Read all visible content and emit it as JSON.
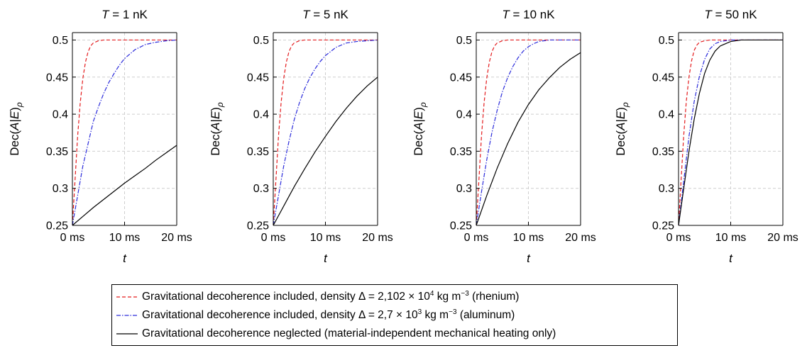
{
  "chart_data": [
    {
      "type": "line",
      "title": "T = 1 nK",
      "title_var": "T",
      "title_rest": " = 1 nK",
      "xlabel": "t",
      "ylabel": "Dec(A|E)ρ",
      "x_ticks": [
        "0 ms",
        "10 ms",
        "20 ms"
      ],
      "y_ticks": [
        "0.25",
        "0.3",
        "0.35",
        "0.4",
        "0.45",
        "0.5"
      ],
      "xlim": [
        0,
        20
      ],
      "ylim": [
        0.25,
        0.51
      ],
      "grid": true,
      "x_unit": "ms",
      "series": [
        {
          "color": "#e41a1c",
          "dash": "dashed",
          "x": [
            0,
            0.5,
            1,
            1.5,
            2,
            2.5,
            3,
            3.5,
            4,
            5,
            6,
            8,
            20
          ],
          "y": [
            0.25,
            0.31,
            0.37,
            0.415,
            0.448,
            0.47,
            0.484,
            0.492,
            0.496,
            0.499,
            0.5,
            0.5,
            0.5
          ]
        },
        {
          "color": "#2b2bdb",
          "dash": "dashdot",
          "x": [
            0,
            1,
            2,
            3,
            4,
            5,
            6,
            7,
            8,
            9,
            10,
            12,
            14,
            16,
            18,
            20
          ],
          "y": [
            0.25,
            0.29,
            0.33,
            0.36,
            0.39,
            0.41,
            0.428,
            0.443,
            0.455,
            0.466,
            0.475,
            0.487,
            0.494,
            0.497,
            0.499,
            0.5
          ]
        },
        {
          "color": "#000000",
          "dash": "solid",
          "x": [
            0,
            2,
            4,
            6,
            8,
            10,
            12,
            14,
            16,
            18,
            20
          ],
          "y": [
            0.25,
            0.262,
            0.274,
            0.285,
            0.296,
            0.307,
            0.317,
            0.327,
            0.338,
            0.348,
            0.358
          ]
        }
      ]
    },
    {
      "type": "line",
      "title": "T = 5 nK",
      "title_var": "T",
      "title_rest": " = 5 nK",
      "xlabel": "t",
      "ylabel": "Dec(A|E)ρ",
      "x_ticks": [
        "0 ms",
        "10 ms",
        "20 ms"
      ],
      "y_ticks": [
        "0.25",
        "0.3",
        "0.35",
        "0.4",
        "0.45",
        "0.5"
      ],
      "xlim": [
        0,
        20
      ],
      "ylim": [
        0.25,
        0.51
      ],
      "grid": true,
      "x_unit": "ms",
      "series": [
        {
          "color": "#e41a1c",
          "dash": "dashed",
          "x": [
            0,
            0.5,
            1,
            1.5,
            2,
            2.5,
            3,
            3.5,
            4,
            5,
            6,
            8,
            20
          ],
          "y": [
            0.25,
            0.31,
            0.37,
            0.415,
            0.448,
            0.47,
            0.484,
            0.492,
            0.496,
            0.499,
            0.5,
            0.5,
            0.5
          ]
        },
        {
          "color": "#2b2bdb",
          "dash": "dashdot",
          "x": [
            0,
            1,
            2,
            3,
            4,
            5,
            6,
            7,
            8,
            9,
            10,
            12,
            14,
            16,
            18,
            20
          ],
          "y": [
            0.25,
            0.29,
            0.33,
            0.363,
            0.392,
            0.415,
            0.434,
            0.449,
            0.461,
            0.471,
            0.479,
            0.49,
            0.496,
            0.498,
            0.499,
            0.5
          ]
        },
        {
          "color": "#000000",
          "dash": "solid",
          "x": [
            0,
            2,
            4,
            6,
            8,
            10,
            12,
            14,
            16,
            18,
            20
          ],
          "y": [
            0.25,
            0.276,
            0.302,
            0.326,
            0.349,
            0.37,
            0.39,
            0.408,
            0.424,
            0.438,
            0.45
          ]
        }
      ]
    },
    {
      "type": "line",
      "title": "T = 10 nK",
      "title_var": "T",
      "title_rest": " = 10 nK",
      "xlabel": "t",
      "ylabel": "Dec(A|E)ρ",
      "x_ticks": [
        "0 ms",
        "10 ms",
        "20 ms"
      ],
      "y_ticks": [
        "0.25",
        "0.3",
        "0.35",
        "0.4",
        "0.45",
        "0.5"
      ],
      "xlim": [
        0,
        20
      ],
      "ylim": [
        0.25,
        0.51
      ],
      "grid": true,
      "x_unit": "ms",
      "series": [
        {
          "color": "#e41a1c",
          "dash": "dashed",
          "x": [
            0,
            0.5,
            1,
            1.5,
            2,
            2.5,
            3,
            3.5,
            4,
            5,
            6,
            8,
            20
          ],
          "y": [
            0.25,
            0.31,
            0.37,
            0.415,
            0.448,
            0.47,
            0.484,
            0.492,
            0.496,
            0.499,
            0.5,
            0.5,
            0.5
          ]
        },
        {
          "color": "#2b2bdb",
          "dash": "dashdot",
          "x": [
            0,
            1,
            2,
            3,
            4,
            5,
            6,
            7,
            8,
            9,
            10,
            11,
            12,
            14,
            20
          ],
          "y": [
            0.25,
            0.295,
            0.338,
            0.375,
            0.405,
            0.43,
            0.449,
            0.464,
            0.476,
            0.485,
            0.491,
            0.495,
            0.498,
            0.5,
            0.5
          ]
        },
        {
          "color": "#000000",
          "dash": "solid",
          "x": [
            0,
            2,
            4,
            6,
            8,
            10,
            12,
            14,
            16,
            18,
            20
          ],
          "y": [
            0.25,
            0.29,
            0.327,
            0.36,
            0.389,
            0.413,
            0.433,
            0.449,
            0.463,
            0.474,
            0.483
          ]
        }
      ]
    },
    {
      "type": "line",
      "title": "T = 50 nK",
      "title_var": "T",
      "title_rest": " = 50 nK",
      "xlabel": "t",
      "ylabel": "Dec(A|E)ρ",
      "x_ticks": [
        "0 ms",
        "10 ms",
        "20 ms"
      ],
      "y_ticks": [
        "0.25",
        "0.3",
        "0.35",
        "0.4",
        "0.45",
        "0.5"
      ],
      "xlim": [
        0,
        20
      ],
      "ylim": [
        0.25,
        0.51
      ],
      "grid": true,
      "x_unit": "ms",
      "series": [
        {
          "color": "#e41a1c",
          "dash": "dashed",
          "x": [
            0,
            0.5,
            1,
            1.5,
            2,
            2.5,
            3,
            3.5,
            4,
            5,
            6,
            8,
            20
          ],
          "y": [
            0.25,
            0.312,
            0.372,
            0.418,
            0.45,
            0.472,
            0.486,
            0.493,
            0.497,
            0.499,
            0.5,
            0.5,
            0.5
          ]
        },
        {
          "color": "#2b2bdb",
          "dash": "dashdot",
          "x": [
            0,
            1,
            2,
            3,
            4,
            5,
            6,
            7,
            8,
            10,
            20
          ],
          "y": [
            0.25,
            0.31,
            0.37,
            0.417,
            0.451,
            0.474,
            0.488,
            0.495,
            0.498,
            0.5,
            0.5
          ]
        },
        {
          "color": "#000000",
          "dash": "solid",
          "x": [
            0,
            1,
            2,
            3,
            4,
            5,
            6,
            7,
            8,
            10,
            12,
            20
          ],
          "y": [
            0.25,
            0.3,
            0.35,
            0.393,
            0.428,
            0.455,
            0.473,
            0.485,
            0.492,
            0.498,
            0.5,
            0.5
          ]
        }
      ]
    }
  ],
  "legend": {
    "entries": [
      {
        "text_before": "Gravitational decoherence included, density Δ = 2,102 × 10",
        "sup1": "4",
        "text_mid": " kg m",
        "sup2": "−3",
        "text_after": " (rhenium)",
        "color": "#e41a1c",
        "dash": "dashed"
      },
      {
        "text_before": "Gravitational decoherence included, density Δ = 2,7 × 10",
        "sup1": "3",
        "text_mid": " kg m",
        "sup2": "−3",
        "text_after": " (aluminum)",
        "color": "#2b2bdb",
        "dash": "dashdot"
      },
      {
        "text_before": "Gravitational decoherence neglected (material-independent mechanical heating only)",
        "sup1": "",
        "text_mid": "",
        "sup2": "",
        "text_after": "",
        "color": "#000000",
        "dash": "solid"
      }
    ]
  }
}
